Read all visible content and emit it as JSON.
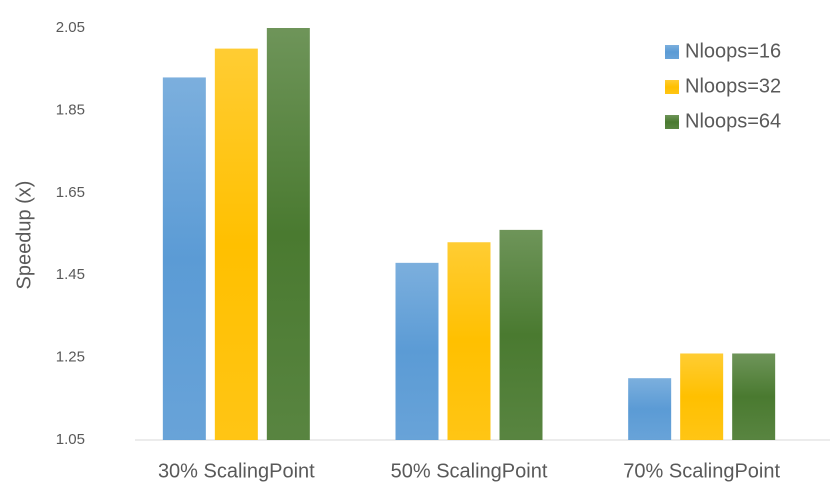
{
  "chart_data": {
    "type": "bar",
    "y_label": "Speedup (x)",
    "categories": [
      "30% ScalingPoint",
      "50% ScalingPoint",
      "70% ScalingPoint"
    ],
    "series": [
      {
        "name": "Nloops=16",
        "color": "#5b9bd5",
        "values": [
          1.93,
          1.48,
          1.2
        ]
      },
      {
        "name": "Nloops=32",
        "color": "#ffc000",
        "values": [
          2.0,
          1.53,
          1.26
        ]
      },
      {
        "name": "Nloops=64",
        "color": "#4a7a30",
        "values": [
          2.05,
          1.56,
          1.26
        ]
      }
    ],
    "ylim": [
      1.05,
      2.05
    ],
    "yticks": [
      1.05,
      1.25,
      1.45,
      1.65,
      1.85,
      2.05
    ],
    "grid": false,
    "legend": "top-right"
  }
}
